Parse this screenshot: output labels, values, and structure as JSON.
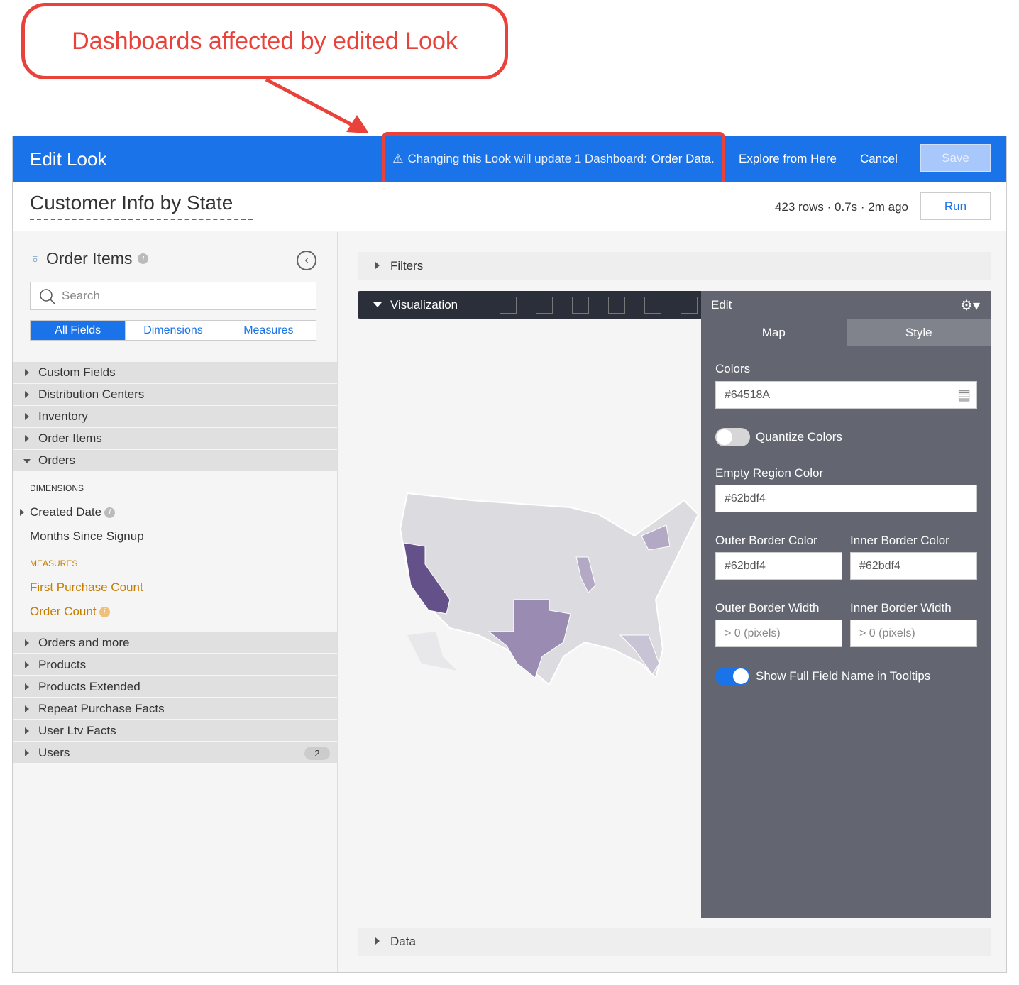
{
  "callout": {
    "text": "Dashboards affected by edited Look",
    "color": "#e8423a"
  },
  "topbar": {
    "title": "Edit Look",
    "warning_prefix": "Changing this Look will update 1 Dashboard:",
    "warning_dashboard": "Order Data.",
    "explore": "Explore from Here",
    "cancel": "Cancel",
    "save": "Save",
    "accent": "#1a73e8"
  },
  "header": {
    "look_title": "Customer Info by State",
    "rows": "423 rows",
    "runtime": "0.7s",
    "age": "2m ago",
    "run": "Run"
  },
  "sidebar": {
    "explore_title": "Order Items",
    "search_placeholder": "Search",
    "tabs": [
      "All Fields",
      "Dimensions",
      "Measures"
    ],
    "views_before": [
      "Custom Fields",
      "Distribution Centers",
      "Inventory",
      "Order Items"
    ],
    "open_view": "Orders",
    "dimensions_label": "DIMENSIONS",
    "dimensions": [
      "Created Date",
      "Months Since Signup"
    ],
    "measures_label": "MEASURES",
    "measures": [
      "First Purchase Count",
      "Order Count"
    ],
    "views_after": [
      "Orders and more",
      "Products",
      "Products Extended",
      "Repeat Purchase Facts",
      "User Ltv Facts",
      "Users"
    ],
    "users_badge": "2"
  },
  "main": {
    "filters": "Filters",
    "visualization": "Visualization",
    "data": "Data",
    "viz_icons": [
      "table-icon",
      "column-chart-icon",
      "bar-chart-icon",
      "scatter-icon",
      "line-chart-icon",
      "area-chart-icon"
    ]
  },
  "edit_panel": {
    "title": "Edit",
    "tabs": [
      "Map",
      "Style"
    ],
    "colors_label": "Colors",
    "colors_value": "#64518A",
    "quantize_label": "Quantize Colors",
    "quantize_on": false,
    "empty_region_label": "Empty Region Color",
    "empty_region_value": "#62bdf4",
    "outer_border_color_label": "Outer Border Color",
    "outer_border_color_value": "#62bdf4",
    "inner_border_color_label": "Inner Border Color",
    "inner_border_color_value": "#62bdf4",
    "outer_border_width_label": "Outer Border Width",
    "outer_border_width_placeholder": "> 0 (pixels)",
    "inner_border_width_label": "Inner Border Width",
    "inner_border_width_placeholder": "> 0 (pixels)",
    "tooltip_label": "Show Full Field Name in Tooltips",
    "tooltip_on": true
  }
}
